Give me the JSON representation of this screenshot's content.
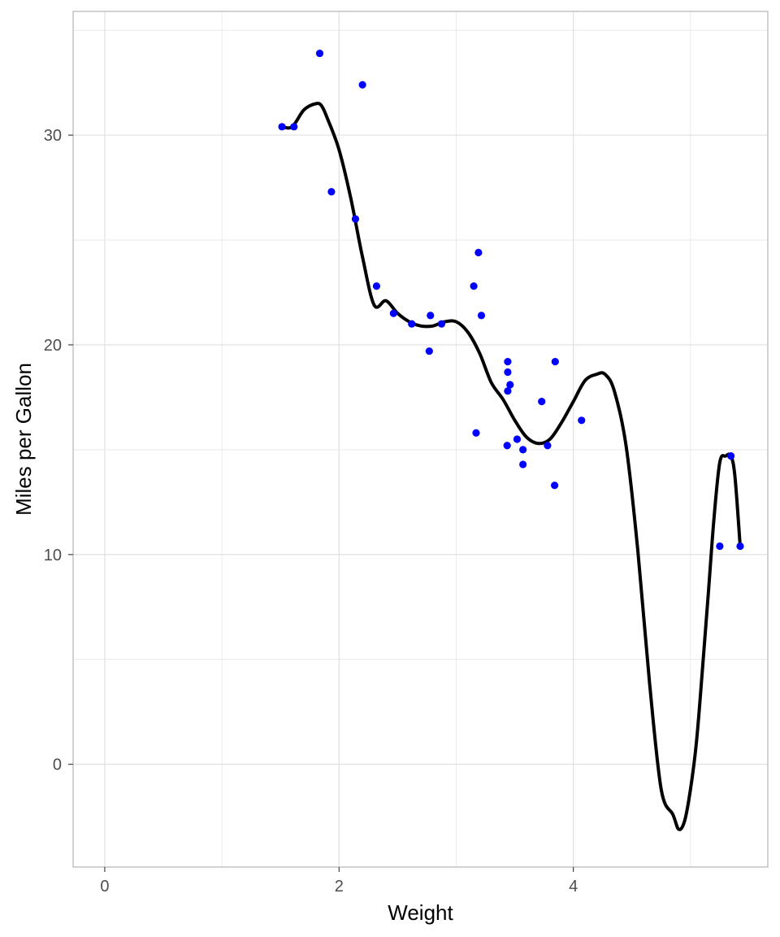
{
  "chart_data": {
    "type": "scatter",
    "title": "",
    "xlabel": "Weight",
    "ylabel": "Miles per Gallon",
    "xlim": [
      -0.27,
      5.66
    ],
    "ylim": [
      -4.9,
      35.9
    ],
    "x_major_ticks": [
      0,
      2,
      4
    ],
    "x_minor_ticks": [
      1,
      3,
      5
    ],
    "y_major_ticks": [
      0,
      10,
      20,
      30
    ],
    "y_minor_ticks": [
      5,
      15,
      25,
      35
    ],
    "x_tick_labels": [
      "0",
      "2",
      "4"
    ],
    "y_tick_labels": [
      "0",
      "10",
      "20",
      "30"
    ],
    "grid": true,
    "legend": "none",
    "colors": {
      "points": "#0000ff",
      "line": "#000000",
      "grid": "#dedede",
      "panel_border": "#b3b3b3"
    },
    "series": [
      {
        "kind": "points",
        "x": [
          2.62,
          2.875,
          2.32,
          3.215,
          3.44,
          3.46,
          3.57,
          3.19,
          3.15,
          3.44,
          3.44,
          4.07,
          3.73,
          3.78,
          5.25,
          5.424,
          5.345,
          2.2,
          1.615,
          1.835,
          2.465,
          3.52,
          3.435,
          3.84,
          3.845,
          1.935,
          2.14,
          1.513,
          3.17,
          2.77,
          3.57,
          2.78
        ],
        "y": [
          21.0,
          21.0,
          22.8,
          21.4,
          18.7,
          18.1,
          14.3,
          24.4,
          22.8,
          19.2,
          17.8,
          16.4,
          17.3,
          15.2,
          10.4,
          10.4,
          14.7,
          32.4,
          30.4,
          33.9,
          21.5,
          15.5,
          15.2,
          13.3,
          19.2,
          27.3,
          26.0,
          30.4,
          15.8,
          19.7,
          15.0,
          21.4
        ]
      },
      {
        "kind": "smooth-line",
        "x": [
          1.513,
          1.6,
          1.7,
          1.8,
          1.85,
          1.9,
          2.0,
          2.1,
          2.2,
          2.3,
          2.4,
          2.5,
          2.6,
          2.7,
          2.8,
          2.9,
          3.0,
          3.1,
          3.2,
          3.3,
          3.4,
          3.5,
          3.6,
          3.7,
          3.8,
          3.9,
          4.0,
          4.1,
          4.2,
          4.27,
          4.35,
          4.45,
          4.55,
          4.65,
          4.75,
          4.85,
          4.9,
          4.95,
          5.0,
          5.05,
          5.1,
          5.15,
          5.2,
          5.25,
          5.3,
          5.345,
          5.38,
          5.424
        ],
        "y": [
          30.4,
          30.4,
          31.2,
          31.5,
          31.4,
          30.8,
          29.3,
          27.0,
          24.2,
          21.9,
          22.1,
          21.5,
          21.1,
          20.9,
          20.9,
          21.1,
          21.1,
          20.6,
          19.6,
          18.2,
          17.4,
          16.4,
          15.6,
          15.3,
          15.5,
          16.3,
          17.3,
          18.3,
          18.6,
          18.6,
          17.8,
          15.2,
          10.2,
          3.9,
          -1.2,
          -2.4,
          -3.1,
          -2.7,
          -1.2,
          1.0,
          4.4,
          8.0,
          11.7,
          14.4,
          14.7,
          14.7,
          13.7,
          10.4
        ]
      }
    ]
  }
}
